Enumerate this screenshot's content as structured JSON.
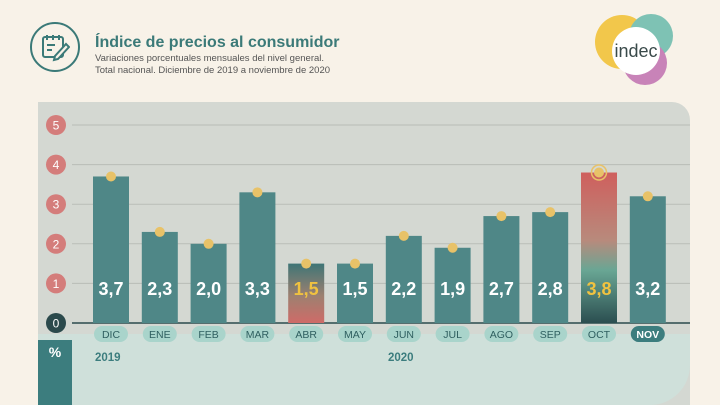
{
  "header": {
    "title": "Índice de precios al consumidor",
    "subtitle": "Variaciones porcentuales mensuales del nivel general.\nTotal nacional. Diciembre de 2019 a noviembre de 2020",
    "icon": "calendar-pencil-icon"
  },
  "logo": {
    "text": "indec",
    "colors": [
      "#f2c74b",
      "#7ec2b4",
      "#c883b8"
    ]
  },
  "colors": {
    "bar": "#4f8787",
    "highlight_value": "#f0c240",
    "marker": "#e8c268",
    "tick_badge": "#d47d7b",
    "zero_badge": "#2b4a4c",
    "month_pill": "#a9d4cb",
    "nov_pill": "#3c7d7e"
  },
  "chart_data": {
    "type": "bar",
    "categories": [
      "DIC",
      "ENE",
      "FEB",
      "MAR",
      "ABR",
      "MAY",
      "JUN",
      "JUL",
      "AGO",
      "SEP",
      "OCT",
      "NOV"
    ],
    "values": [
      3.7,
      2.3,
      2.0,
      3.3,
      1.5,
      1.5,
      2.2,
      1.9,
      2.7,
      2.8,
      3.8,
      3.2
    ],
    "value_labels": [
      "3,7",
      "2,3",
      "2,0",
      "3,3",
      "1,5",
      "1,5",
      "2,2",
      "1,9",
      "2,7",
      "2,8",
      "3,8",
      "3,2"
    ],
    "highlighted": [
      "ABR",
      "OCT"
    ],
    "ylabel": "%",
    "ylim": [
      0,
      5
    ],
    "yticks": [
      "0",
      "1",
      "2",
      "3",
      "4",
      "5"
    ],
    "grid": true,
    "year_labels": [
      "2019",
      "2020"
    ]
  }
}
